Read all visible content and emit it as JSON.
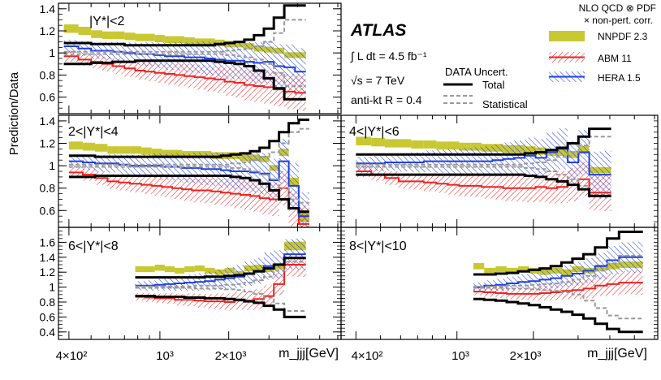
{
  "chart_data": {
    "type": "line",
    "title": "",
    "experiment": "ATLAS",
    "luminosity_label": "∫ L dt = 4.5 fb⁻¹",
    "energy_label": "√s = 7 TeV",
    "jet_label": "anti-kt R = 0.4",
    "ylabel": "Prediction/Data",
    "xlabel": "m_jjj[GeV]",
    "xscale": "log",
    "xlim": [
      360,
      6000
    ],
    "x_ticks": [
      {
        "value": 400,
        "label": "4×10²"
      },
      {
        "value": 1000,
        "label": "10³"
      },
      {
        "value": 2000,
        "label": "2×10³"
      }
    ],
    "legend": {
      "header": [
        "NLO QCD ⊗ PDF",
        "× non-pert. corr."
      ],
      "entries": [
        {
          "name": "NNPDF 2.3",
          "color": "#c8c832",
          "style": "solid band"
        },
        {
          "name": "ABM 11",
          "color": "#ee2222",
          "style": "hatched"
        },
        {
          "name": "HERA 1.5",
          "color": "#1f3fe0",
          "style": "hatched"
        }
      ],
      "uncert_title": "DATA Uncert.",
      "uncert_entries": [
        {
          "name": "Total",
          "style": "solid black"
        },
        {
          "name": "Statistical",
          "style": "dashed grey"
        }
      ]
    },
    "panels": [
      {
        "label": "|Y*|<2",
        "ylim": [
          0.45,
          1.45
        ],
        "yticks": [
          0.6,
          0.8,
          1,
          1.2,
          1.4
        ],
        "edges": [
          380,
          440,
          500,
          560,
          620,
          700,
          780,
          860,
          950,
          1050,
          1160,
          1280,
          1420,
          1570,
          1740,
          1920,
          2120,
          2340,
          2580,
          2850,
          3150,
          3500,
          3900,
          4350
        ],
        "total_up": [
          1.09,
          1.09,
          1.08,
          1.08,
          1.08,
          1.07,
          1.07,
          1.07,
          1.07,
          1.07,
          1.07,
          1.07,
          1.07,
          1.07,
          1.08,
          1.09,
          1.1,
          1.12,
          1.16,
          1.22,
          1.32,
          1.43,
          1.43
        ],
        "total_down": [
          0.9,
          0.9,
          0.91,
          0.91,
          0.92,
          0.92,
          0.93,
          0.93,
          0.93,
          0.93,
          0.93,
          0.93,
          0.93,
          0.93,
          0.92,
          0.91,
          0.9,
          0.88,
          0.84,
          0.77,
          0.68,
          0.58,
          0.58
        ],
        "stat_up": [
          1.01,
          1.01,
          1.01,
          1.01,
          1.01,
          1.01,
          1.01,
          1.01,
          1.01,
          1.01,
          1.01,
          1.01,
          1.01,
          1.01,
          1.01,
          1.02,
          1.03,
          1.04,
          1.06,
          1.1,
          1.18,
          1.3,
          1.3
        ],
        "stat_down": [
          0.99,
          0.99,
          0.99,
          0.99,
          0.99,
          0.99,
          0.99,
          0.99,
          0.99,
          0.99,
          0.99,
          0.99,
          0.99,
          0.99,
          0.99,
          0.98,
          0.97,
          0.96,
          0.94,
          0.9,
          0.82,
          0.7,
          0.7
        ],
        "nnpdf": [
          1.22,
          1.2,
          1.17,
          1.16,
          1.16,
          1.15,
          1.14,
          1.14,
          1.13,
          1.12,
          1.12,
          1.11,
          1.1,
          1.1,
          1.09,
          1.08,
          1.08,
          1.06,
          1.04,
          1.03,
          1.02,
          0.98,
          0.98
        ],
        "abm": [
          0.97,
          0.94,
          0.92,
          0.9,
          0.88,
          0.86,
          0.84,
          0.83,
          0.82,
          0.81,
          0.8,
          0.79,
          0.78,
          0.77,
          0.76,
          0.74,
          0.73,
          0.71,
          0.7,
          0.69,
          0.67,
          0.65,
          0.64
        ],
        "hera": [
          1.06,
          1.04,
          1.02,
          1.02,
          1.01,
          1.0,
          0.99,
          0.99,
          0.98,
          0.97,
          0.97,
          0.96,
          0.96,
          0.95,
          0.94,
          0.93,
          0.93,
          0.92,
          0.91,
          0.92,
          0.88,
          0.87,
          0.83
        ]
      },
      {
        "label": "2<|Y*|<4",
        "ylim": [
          0.45,
          1.45
        ],
        "yticks": [
          0.6,
          0.8,
          1,
          1.2,
          1.4
        ],
        "edges": [
          400,
          460,
          520,
          590,
          660,
          740,
          830,
          920,
          1020,
          1130,
          1250,
          1380,
          1520,
          1680,
          1850,
          2040,
          2250,
          2480,
          2730,
          3010,
          3320,
          3660,
          4050,
          4500
        ],
        "total_up": [
          1.09,
          1.09,
          1.08,
          1.08,
          1.08,
          1.08,
          1.08,
          1.08,
          1.08,
          1.08,
          1.08,
          1.08,
          1.08,
          1.08,
          1.09,
          1.1,
          1.11,
          1.13,
          1.16,
          1.22,
          1.3,
          1.38,
          1.41
        ],
        "total_down": [
          0.9,
          0.9,
          0.91,
          0.91,
          0.91,
          0.91,
          0.91,
          0.91,
          0.91,
          0.91,
          0.91,
          0.91,
          0.91,
          0.91,
          0.91,
          0.9,
          0.89,
          0.87,
          0.84,
          0.78,
          0.7,
          0.62,
          0.59
        ],
        "stat_up": [
          1.01,
          1.01,
          1.01,
          1.01,
          1.01,
          1.01,
          1.01,
          1.01,
          1.01,
          1.01,
          1.01,
          1.01,
          1.01,
          1.01,
          1.01,
          1.02,
          1.03,
          1.05,
          1.08,
          1.12,
          1.2,
          1.3,
          1.33
        ],
        "stat_down": [
          0.99,
          0.99,
          0.99,
          0.99,
          0.99,
          0.99,
          0.99,
          0.99,
          0.99,
          0.99,
          0.99,
          0.99,
          0.99,
          0.99,
          0.99,
          0.98,
          0.97,
          0.95,
          0.92,
          0.88,
          0.8,
          0.7,
          0.67
        ],
        "nnpdf": [
          1.18,
          1.17,
          1.16,
          1.14,
          1.14,
          1.14,
          1.13,
          1.12,
          1.11,
          1.11,
          1.1,
          1.1,
          1.1,
          1.09,
          1.09,
          1.09,
          1.07,
          1.07,
          1.06,
          0.98,
          1.12,
          0.86,
          0.55
        ],
        "abm": [
          0.94,
          0.92,
          0.89,
          0.86,
          0.85,
          0.84,
          0.83,
          0.82,
          0.81,
          0.8,
          0.79,
          0.78,
          0.78,
          0.77,
          0.76,
          0.75,
          0.74,
          0.73,
          0.71,
          0.7,
          0.8,
          0.62,
          0.48
        ],
        "hera": [
          1.04,
          1.03,
          1.02,
          1.02,
          1.01,
          1.0,
          1.0,
          1.0,
          0.99,
          0.99,
          0.98,
          0.98,
          0.97,
          0.97,
          0.96,
          0.95,
          0.95,
          0.94,
          0.93,
          0.87,
          1.04,
          0.82,
          0.55
        ]
      },
      {
        "label": "4<|Y*|<6",
        "ylim": [
          0.45,
          1.45
        ],
        "yticks": [],
        "edges": [
          400,
          460,
          520,
          590,
          660,
          740,
          830,
          920,
          1020,
          1130,
          1250,
          1380,
          1520,
          1680,
          1850,
          2040,
          2250,
          2480,
          2730,
          3010,
          3320,
          3660,
          4050
        ],
        "total_up": [
          1.1,
          1.1,
          1.1,
          1.1,
          1.1,
          1.1,
          1.1,
          1.1,
          1.1,
          1.1,
          1.1,
          1.1,
          1.1,
          1.1,
          1.11,
          1.12,
          1.14,
          1.16,
          1.2,
          1.26,
          1.33,
          1.33
        ],
        "total_down": [
          0.92,
          0.92,
          0.92,
          0.92,
          0.92,
          0.92,
          0.92,
          0.92,
          0.92,
          0.92,
          0.92,
          0.92,
          0.92,
          0.92,
          0.91,
          0.9,
          0.88,
          0.86,
          0.83,
          0.79,
          0.73,
          0.73
        ],
        "stat_up": [
          1.01,
          1.01,
          1.01,
          1.01,
          1.01,
          1.01,
          1.01,
          1.01,
          1.01,
          1.01,
          1.01,
          1.01,
          1.01,
          1.01,
          1.02,
          1.03,
          1.05,
          1.08,
          1.12,
          1.18,
          1.26,
          1.26
        ],
        "stat_down": [
          0.99,
          0.99,
          0.99,
          0.99,
          0.99,
          0.99,
          0.99,
          0.99,
          0.99,
          0.99,
          0.99,
          0.99,
          0.99,
          0.99,
          0.98,
          0.97,
          0.95,
          0.92,
          0.88,
          0.82,
          0.74,
          0.74
        ],
        "nnpdf": [
          1.22,
          1.21,
          1.2,
          1.2,
          1.19,
          1.19,
          1.18,
          1.18,
          1.17,
          1.17,
          1.16,
          1.16,
          1.15,
          1.15,
          1.14,
          1.13,
          1.12,
          1.12,
          1.1,
          1.14,
          0.96,
          0.96
        ],
        "abm": [
          0.95,
          0.92,
          0.89,
          0.86,
          0.86,
          0.85,
          0.84,
          0.83,
          0.82,
          0.82,
          0.81,
          0.81,
          0.8,
          0.8,
          0.8,
          0.81,
          0.8,
          0.81,
          0.83,
          0.88,
          0.76,
          0.76
        ],
        "hera": [
          1.02,
          1.02,
          1.03,
          1.03,
          1.03,
          1.04,
          1.04,
          1.04,
          1.04,
          1.04,
          1.04,
          1.05,
          1.06,
          1.07,
          1.09,
          1.07,
          1.12,
          1.15,
          1.03,
          1.12,
          0.92,
          0.92
        ]
      },
      {
        "label": "6<|Y*|<8",
        "ylim": [
          0.3,
          1.8
        ],
        "yticks": [
          0.4,
          0.6,
          0.8,
          1,
          1.2,
          1.4,
          1.6
        ],
        "edges": [
          780,
          860,
          950,
          1050,
          1160,
          1280,
          1420,
          1570,
          1740,
          1920,
          2120,
          2340,
          2580,
          2850,
          3150,
          3500,
          3900,
          4350
        ],
        "total_up": [
          1.13,
          1.13,
          1.13,
          1.13,
          1.13,
          1.13,
          1.13,
          1.14,
          1.14,
          1.15,
          1.16,
          1.18,
          1.21,
          1.25,
          1.3,
          1.39,
          1.39
        ],
        "total_down": [
          0.88,
          0.88,
          0.87,
          0.87,
          0.87,
          0.86,
          0.86,
          0.85,
          0.85,
          0.84,
          0.83,
          0.81,
          0.79,
          0.75,
          0.7,
          0.6,
          0.6
        ],
        "stat_up": [
          1.01,
          1.01,
          1.01,
          1.01,
          1.01,
          1.01,
          1.02,
          1.02,
          1.02,
          1.03,
          1.04,
          1.06,
          1.09,
          1.14,
          1.22,
          1.34,
          1.34
        ],
        "stat_down": [
          0.99,
          0.99,
          0.99,
          0.99,
          0.99,
          0.99,
          0.98,
          0.98,
          0.98,
          0.97,
          0.96,
          0.94,
          0.91,
          0.86,
          0.78,
          0.68,
          0.68
        ],
        "nnpdf": [
          1.24,
          1.24,
          1.26,
          1.24,
          1.22,
          1.24,
          1.25,
          1.22,
          1.2,
          1.22,
          1.18,
          1.25,
          1.26,
          1.24,
          1.28,
          1.55,
          1.55
        ],
        "abm": [
          0.87,
          0.86,
          0.85,
          0.85,
          0.83,
          0.83,
          0.82,
          0.81,
          0.81,
          0.8,
          0.82,
          0.82,
          0.84,
          0.88,
          1.04,
          1.3,
          1.3
        ],
        "hera": [
          1.02,
          1.02,
          1.03,
          1.04,
          1.05,
          1.06,
          1.07,
          1.08,
          1.1,
          1.12,
          1.14,
          1.18,
          1.22,
          1.28,
          1.3,
          1.44,
          1.44
        ]
      },
      {
        "label": "8<|Y*|<10",
        "ylim": [
          0.3,
          1.8
        ],
        "yticks": [],
        "edges": [
          1160,
          1280,
          1420,
          1570,
          1740,
          1920,
          2120,
          2340,
          2580,
          2850,
          3150,
          3500,
          3900,
          4350,
          4850,
          5400
        ],
        "total_up": [
          1.17,
          1.17,
          1.18,
          1.19,
          1.21,
          1.23,
          1.25,
          1.28,
          1.33,
          1.38,
          1.44,
          1.53,
          1.65,
          1.74,
          1.74
        ],
        "total_down": [
          0.84,
          0.83,
          0.82,
          0.8,
          0.78,
          0.76,
          0.73,
          0.7,
          0.67,
          0.63,
          0.58,
          0.51,
          0.44,
          0.4,
          0.4
        ],
        "stat_up": [
          1.01,
          1.01,
          1.01,
          1.02,
          1.02,
          1.03,
          1.04,
          1.05,
          1.07,
          1.1,
          1.15,
          1.22,
          1.32,
          1.42,
          1.42
        ],
        "stat_down": [
          0.99,
          0.99,
          0.99,
          0.98,
          0.98,
          0.97,
          0.96,
          0.95,
          0.93,
          0.9,
          0.82,
          0.72,
          0.62,
          0.58,
          0.58
        ],
        "nnpdf": [
          1.28,
          1.22,
          1.24,
          1.22,
          1.24,
          1.22,
          1.2,
          1.22,
          1.2,
          1.24,
          1.22,
          1.26,
          1.28,
          1.3,
          1.3
        ],
        "abm": [
          0.94,
          0.93,
          0.92,
          0.91,
          0.91,
          0.91,
          0.92,
          0.93,
          0.95,
          0.96,
          0.98,
          1.02,
          1.04,
          1.06,
          1.06
        ],
        "hera": [
          1.0,
          1.02,
          1.03,
          1.05,
          1.07,
          1.08,
          1.1,
          1.12,
          1.15,
          1.18,
          1.22,
          1.28,
          1.36,
          1.4,
          1.4
        ]
      }
    ]
  }
}
